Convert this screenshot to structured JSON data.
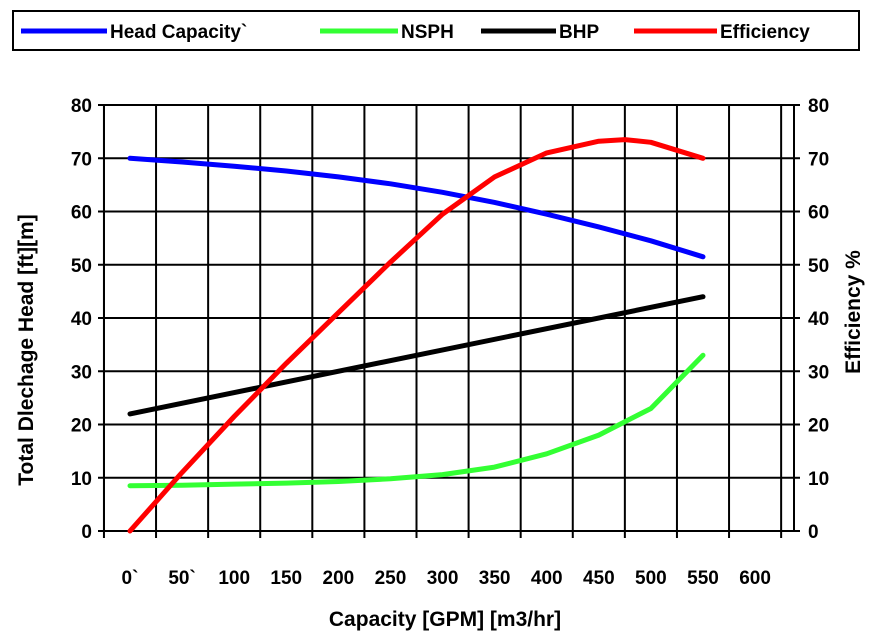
{
  "chart_data": {
    "type": "line",
    "xlabel": "Capacity [GPM] [m3/hr]",
    "ylabel": "Total Dlechage Head [ft][m]",
    "y2label": "Efficiency %",
    "x_ticks": [
      "0`",
      "50`",
      "100",
      "150",
      "200",
      "250",
      "300",
      "350",
      "400",
      "450",
      "500",
      "550",
      "600"
    ],
    "y_ticks": [
      "0",
      "10",
      "20",
      "30",
      "40",
      "50",
      "60",
      "70",
      "80"
    ],
    "y2_ticks": [
      "0",
      "10",
      "20",
      "30",
      "40",
      "50",
      "60",
      "70",
      "80"
    ],
    "xlim": [
      -25,
      625
    ],
    "ylim": [
      0,
      80
    ],
    "y2lim": [
      0,
      80
    ],
    "grid": true,
    "legend_position": "top",
    "series": [
      {
        "name": "Head Capacity`",
        "color": "#0000ff",
        "x": [
          0,
          50,
          100,
          150,
          200,
          250,
          300,
          350,
          400,
          450,
          500,
          550
        ],
        "y": [
          70,
          69.3,
          68.5,
          67.6,
          66.5,
          65.2,
          63.6,
          61.7,
          59.5,
          57.1,
          54.5,
          51.5
        ]
      },
      {
        "name": "NSPH",
        "color": "#33ff33",
        "x": [
          0,
          50,
          100,
          150,
          200,
          250,
          300,
          350,
          400,
          450,
          500,
          550
        ],
        "y": [
          8.5,
          8.6,
          8.8,
          9.0,
          9.3,
          9.8,
          10.6,
          12.0,
          14.5,
          18.0,
          23.0,
          33.0
        ]
      },
      {
        "name": "BHP",
        "color": "#000000",
        "x": [
          0,
          550
        ],
        "y": [
          22,
          44
        ]
      },
      {
        "name": "Efficiency",
        "color": "#ff0000",
        "x": [
          0,
          50,
          100,
          150,
          200,
          250,
          300,
          350,
          400,
          450,
          475,
          500,
          550
        ],
        "y": [
          0,
          11,
          21.5,
          31.5,
          41,
          50.5,
          59.5,
          66.5,
          71,
          73.2,
          73.5,
          73,
          70
        ]
      }
    ]
  }
}
